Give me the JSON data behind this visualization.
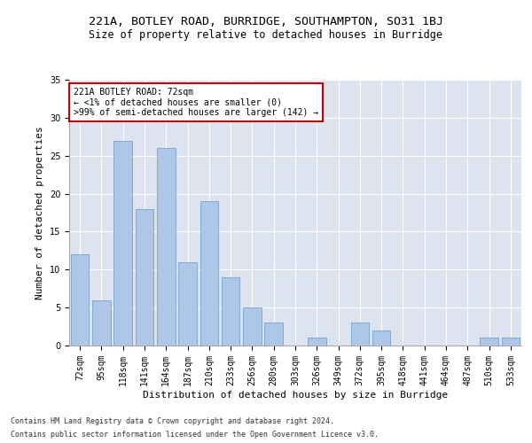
{
  "title1": "221A, BOTLEY ROAD, BURRIDGE, SOUTHAMPTON, SO31 1BJ",
  "title2": "Size of property relative to detached houses in Burridge",
  "xlabel": "Distribution of detached houses by size in Burridge",
  "ylabel": "Number of detached properties",
  "categories": [
    "72sqm",
    "95sqm",
    "118sqm",
    "141sqm",
    "164sqm",
    "187sqm",
    "210sqm",
    "233sqm",
    "256sqm",
    "280sqm",
    "303sqm",
    "326sqm",
    "349sqm",
    "372sqm",
    "395sqm",
    "418sqm",
    "441sqm",
    "464sqm",
    "487sqm",
    "510sqm",
    "533sqm"
  ],
  "values": [
    12,
    6,
    27,
    18,
    26,
    11,
    19,
    9,
    5,
    3,
    0,
    1,
    0,
    3,
    2,
    0,
    0,
    0,
    0,
    1,
    1
  ],
  "bar_color": "#aec6e8",
  "bar_edge_color": "#6699cc",
  "annotation_text": "221A BOTLEY ROAD: 72sqm\n← <1% of detached houses are smaller (0)\n>99% of semi-detached houses are larger (142) →",
  "annotation_box_color": "#ffffff",
  "annotation_box_edge": "#cc0000",
  "footer1": "Contains HM Land Registry data © Crown copyright and database right 2024.",
  "footer2": "Contains public sector information licensed under the Open Government Licence v3.0.",
  "ylim": [
    0,
    35
  ],
  "yticks": [
    0,
    5,
    10,
    15,
    20,
    25,
    30,
    35
  ],
  "background_color": "#dde4f0",
  "grid_color": "#ffffff",
  "fig_bg": "#ffffff",
  "title_fontsize": 9.5,
  "subtitle_fontsize": 8.5,
  "axis_label_fontsize": 8,
  "tick_fontsize": 7,
  "annotation_fontsize": 7,
  "footer_fontsize": 6
}
